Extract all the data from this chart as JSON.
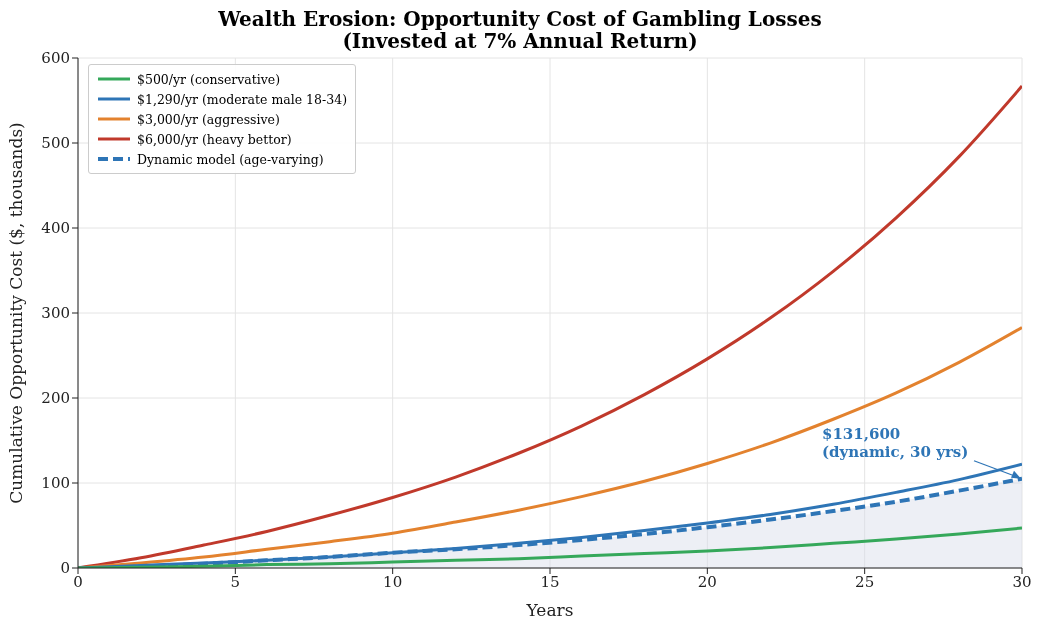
{
  "chart_data": {
    "type": "line",
    "title": "Wealth Erosion: Opportunity Cost of Gambling Losses\n(Invested at 7% Annual Return)",
    "xlabel": "Years",
    "ylabel": "Cumulative Opportunity Cost ($, thousands)",
    "x": [
      0,
      2,
      4,
      6,
      8,
      10,
      12,
      14,
      16,
      18,
      20,
      22,
      24,
      26,
      28,
      30
    ],
    "series": [
      {
        "name": "$500/yr (conservative)",
        "color": "#35a85a",
        "values": [
          0,
          1,
          2,
          4,
          5,
          7,
          9,
          11,
          14,
          17,
          20,
          24,
          29,
          34,
          40,
          47
        ]
      },
      {
        "name": "$1,290/yr (moderate male 18-34)",
        "color": "#2e75b6",
        "values": [
          0,
          3,
          6,
          9,
          13,
          18,
          23,
          29,
          36,
          44,
          53,
          63,
          75,
          89,
          104,
          122
        ]
      },
      {
        "name": "$3,000/yr (aggressive)",
        "color": "#e3822e",
        "values": [
          0,
          6,
          13,
          22,
          31,
          41,
          54,
          68,
          84,
          102,
          123,
          147,
          175,
          206,
          242,
          283
        ]
      },
      {
        "name": "$6,000/yr (heavy bettor)",
        "color": "#c0392b",
        "values": [
          0,
          12,
          27,
          43,
          62,
          83,
          107,
          135,
          167,
          204,
          246,
          294,
          349,
          412,
          484,
          567
        ]
      },
      {
        "name": "Dynamic model (age-varying)",
        "type": "area",
        "color": "#2e75b6",
        "line_style": "dashed",
        "values": [
          0,
          2,
          5,
          9,
          13,
          18,
          22,
          27,
          33,
          40,
          48,
          57,
          67,
          78,
          91,
          105
        ]
      }
    ],
    "xlim": [
      0,
      30
    ],
    "xticks": [
      0,
      5,
      10,
      15,
      20,
      25,
      30
    ],
    "ylim": [
      0,
      600
    ],
    "yticks": [
      0,
      100,
      200,
      300,
      400,
      500,
      600
    ],
    "grid": true,
    "legend": "top left",
    "line_style": "solid",
    "marker": "none",
    "annotations": [
      {
        "text": "$131,600\n(dynamic, 30 yrs)",
        "x": 30,
        "y": 105
      }
    ]
  }
}
